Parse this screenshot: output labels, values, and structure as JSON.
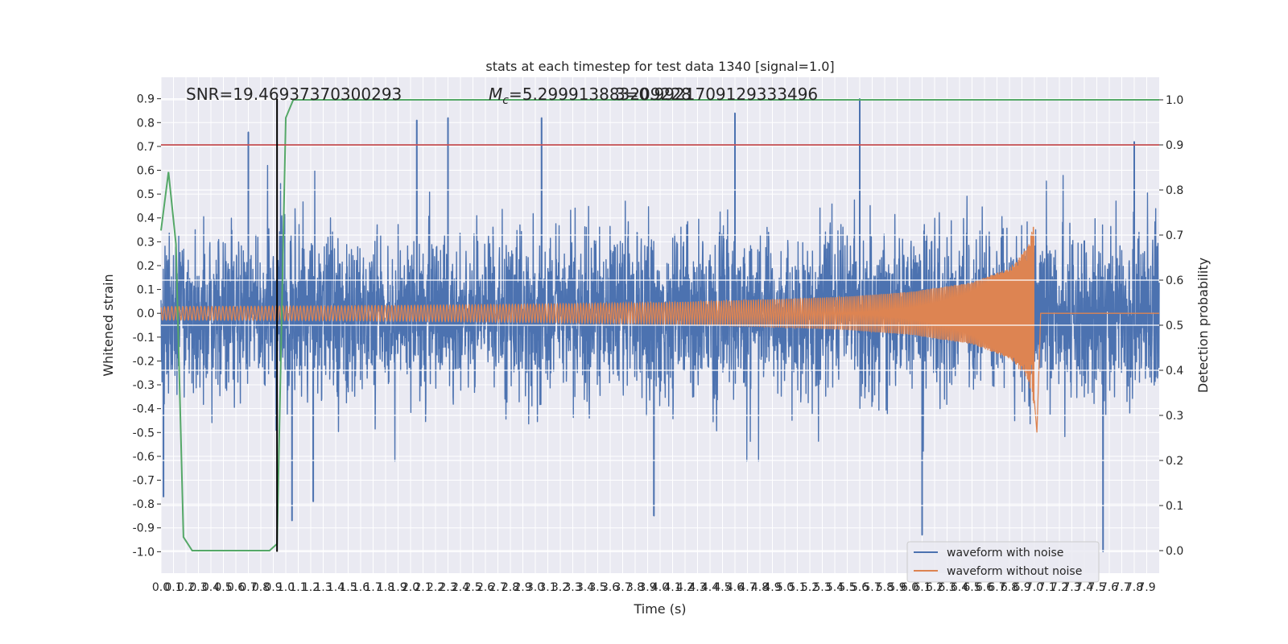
{
  "chart_data": {
    "type": "line",
    "title": "stats at each timestep for test data 1340 [signal=1.0]",
    "xlabel": "Time (s)",
    "ylabel": "Whitened strain",
    "y2label": "Detection probability",
    "xlim": [
      0.0,
      8.0
    ],
    "ylim": [
      -1.09,
      0.99
    ],
    "y2lim": [
      -0.05,
      1.05
    ],
    "yticks": [
      -1.0,
      -0.9,
      -0.8,
      -0.7,
      -0.6,
      -0.5,
      -0.4,
      -0.3,
      -0.2,
      -0.1,
      0.0,
      0.1,
      0.2,
      0.3,
      0.4,
      0.5,
      0.6,
      0.7,
      0.8,
      0.9
    ],
    "y2ticks": [
      0.0,
      0.1,
      0.2,
      0.3,
      0.4,
      0.5,
      0.6,
      0.7,
      0.8,
      0.9,
      1.0
    ],
    "xtick_labels": [
      "0.0",
      "0.1",
      "0.2",
      "0.3",
      "0.4",
      "0.5",
      "0.6",
      "0.7",
      "0.8",
      "0.9",
      "1.0",
      "1.1",
      "1.2",
      "1.3",
      "1.4",
      "1.5",
      "1.6",
      "1.7",
      "1.8",
      "1.9",
      "2.0",
      "2.1",
      "2.2",
      "2.3",
      "2.4",
      "2.5",
      "2.6",
      "2.7",
      "2.8",
      "2.9",
      "3.0",
      "3.1",
      "3.2",
      "3.3",
      "3.4",
      "3.5",
      "3.6",
      "3.7",
      "3.8",
      "3.9",
      "4.0",
      "4.1",
      "4.2",
      "4.3",
      "4.4",
      "4.5",
      "4.6",
      "4.7",
      "4.8",
      "4.9",
      "5.0",
      "5.1",
      "5.2",
      "5.3",
      "5.4",
      "5.5",
      "5.6",
      "5.7",
      "5.8",
      "5.9",
      "6.0",
      "6.1",
      "6.2",
      "6.3",
      "6.4",
      "6.5",
      "6.6",
      "6.7",
      "6.8",
      "6.9",
      "7.0",
      "7.1",
      "7.2",
      "7.3",
      "7.4",
      "7.5",
      "7.6",
      "7.7",
      "7.8",
      "7.9"
    ],
    "grid": true,
    "legend_position": "lower-right",
    "annotations": {
      "snr": "SNR=19.46937370300293",
      "mc_symbol": "M",
      "mc_sub": "c",
      "mc_value": "=5.299913883209228",
      "overlap": "3=0.9921709129333496"
    },
    "series": [
      {
        "name": "waveform with noise",
        "color": "#4c72b0",
        "description_values": "dense Gaussian-like whitened noise, typical |h| about 0.4, peaks: ",
        "peaks": [
          {
            "x": 0.02,
            "y": -0.77
          },
          {
            "x": 0.7,
            "y": 0.76
          },
          {
            "x": 1.05,
            "y": -0.87
          },
          {
            "x": 1.22,
            "y": -0.79
          },
          {
            "x": 2.05,
            "y": 0.81
          },
          {
            "x": 2.3,
            "y": 0.82
          },
          {
            "x": 3.05,
            "y": 0.82
          },
          {
            "x": 3.95,
            "y": -0.85
          },
          {
            "x": 4.6,
            "y": 0.84
          },
          {
            "x": 5.6,
            "y": 0.9
          },
          {
            "x": 6.1,
            "y": -0.93
          },
          {
            "x": 7.55,
            "y": -1.0
          },
          {
            "x": 7.8,
            "y": 0.72
          }
        ]
      },
      {
        "name": "waveform without noise",
        "color": "#dd8452",
        "description_values": "inspiral chirp; envelope amplitude vs time, merger at t=7.0 s",
        "envelope": [
          {
            "x": 0.0,
            "y": 0.028
          },
          {
            "x": 1.0,
            "y": 0.03
          },
          {
            "x": 2.0,
            "y": 0.033
          },
          {
            "x": 3.0,
            "y": 0.038
          },
          {
            "x": 4.0,
            "y": 0.045
          },
          {
            "x": 5.0,
            "y": 0.06
          },
          {
            "x": 5.5,
            "y": 0.07
          },
          {
            "x": 6.0,
            "y": 0.09
          },
          {
            "x": 6.5,
            "y": 0.13
          },
          {
            "x": 6.8,
            "y": 0.19
          },
          {
            "x": 6.95,
            "y": 0.28
          },
          {
            "x": 7.0,
            "y": 0.39
          },
          {
            "x": 7.02,
            "y": -0.5
          },
          {
            "x": 7.05,
            "y": 0.0
          },
          {
            "x": 8.0,
            "y": 0.0
          }
        ]
      },
      {
        "name": "detection probability",
        "color": "#55a868",
        "axis": "right",
        "points": [
          {
            "x": 0.0,
            "y": 0.71
          },
          {
            "x": 0.06,
            "y": 0.84
          },
          {
            "x": 0.12,
            "y": 0.68
          },
          {
            "x": 0.18,
            "y": 0.03
          },
          {
            "x": 0.25,
            "y": 0.0
          },
          {
            "x": 0.87,
            "y": 0.0
          },
          {
            "x": 0.93,
            "y": 0.015
          },
          {
            "x": 1.0,
            "y": 0.96
          },
          {
            "x": 1.06,
            "y": 1.0
          },
          {
            "x": 8.0,
            "y": 1.0
          }
        ]
      }
    ],
    "threshold": {
      "axis": "right",
      "value": 0.9,
      "color": "#c44e52"
    },
    "marker_line": {
      "x": 0.93,
      "color": "#000000"
    }
  },
  "legend": {
    "items": [
      {
        "label": "waveform with noise",
        "color": "#4c72b0"
      },
      {
        "label": "waveform without noise",
        "color": "#dd8452"
      }
    ]
  },
  "colors": {
    "plot_background": "#eaeaf2",
    "grid": "#ffffff",
    "text": "#262626"
  }
}
